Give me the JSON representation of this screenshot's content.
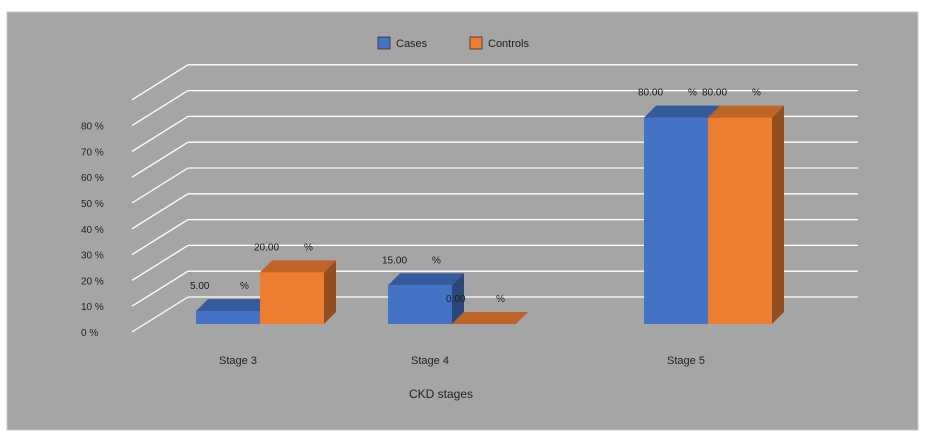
{
  "chart_data": {
    "type": "bar",
    "title": "",
    "xlabel": "CKD stages",
    "ylabel": "",
    "categories": [
      "Stage 3",
      "Stage 4",
      "Stage 5"
    ],
    "series": [
      {
        "name": "Cases",
        "color": "#4472c4",
        "values": [
          5,
          15,
          80
        ],
        "labels": [
          "5.00",
          "15.00",
          "80.00"
        ]
      },
      {
        "name": "Controls",
        "color": "#ed7d31",
        "values": [
          20,
          0,
          80
        ],
        "labels": [
          "20.00",
          "0.00",
          "80.00"
        ]
      }
    ],
    "value_suffix": "%",
    "ylim": [
      0,
      80
    ],
    "yticks": [
      0,
      10,
      20,
      30,
      40,
      50,
      60,
      70,
      80
    ],
    "ytick_labels": [
      "0 %",
      "10  %",
      "20  %",
      "30  %",
      "40  %",
      "50  %",
      "60  %",
      "70  %",
      "80  %"
    ],
    "grid": true,
    "legend_position": "top",
    "background": "#a5a5a5"
  }
}
